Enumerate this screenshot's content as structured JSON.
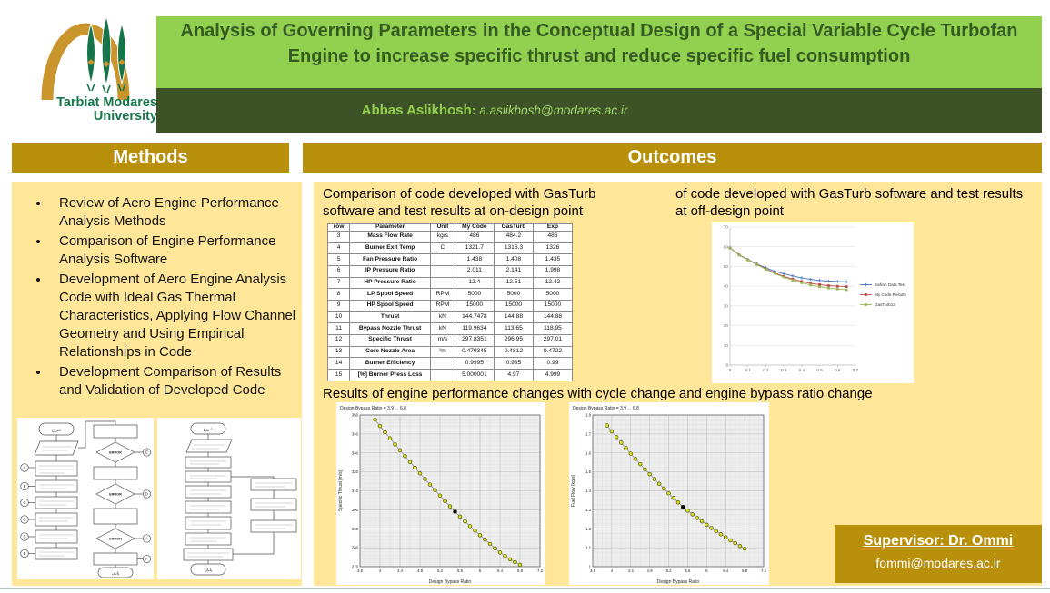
{
  "logo": {
    "line1": "Tarbiat Modares",
    "line2": "University"
  },
  "header": {
    "title": "Analysis of Governing Parameters in the Conceptual Design of a Special Variable Cycle Turbofan Engine to increase specific thrust and reduce specific fuel consumption",
    "author_name": "Abbas Aslikhosh",
    "author_separator": ": ",
    "author_email": "a.aslikhosh@modares.ac.ir"
  },
  "colors": {
    "light_green": "#92D050",
    "dark_green": "#3D5227",
    "gold": "#B8900B",
    "cream": "#FFE699",
    "series_blue": "#4472C4",
    "series_red": "#BE4B48",
    "series_green": "#98B954",
    "gasturb_marker": "#d9e021"
  },
  "methods": {
    "heading": "Methods",
    "bullets": [
      "Review of Aero Engine Performance Analysis Methods",
      "Comparison of Engine Performance Analysis Software",
      "Development of Aero Engine Analysis Code with Ideal Gas Thermal Characteristics, Applying Flow Channel Geometry and Using Empirical Relationships in Code",
      "Development Comparison of Results and Validation of Developed Code"
    ]
  },
  "flowcharts": {
    "left": {
      "start": "شروع",
      "end": "پایان",
      "error": "ERROR",
      "left_letters": [
        "A",
        "B",
        "C",
        "G",
        "D",
        "E"
      ],
      "right_letters": [
        "E",
        "D",
        "A",
        "F"
      ]
    },
    "right": {
      "start": "شروع",
      "end": "پایان"
    }
  },
  "outcomes": {
    "heading": "Outcomes",
    "caption_on_design": "Comparison of code developed with GasTurb software and test results at on-design point",
    "caption_off_design": "of code developed with GasTurb software and test results at off-design point",
    "caption_results": "Results of engine performance changes with cycle change and engine bypass ratio change",
    "table": {
      "headers": [
        "row",
        "Parameter",
        "Unit",
        "My Code",
        "GasTurb",
        "Exp"
      ],
      "rows": [
        [
          "3",
          "Mass Flow Rate",
          "kg/s",
          "486",
          "484.2",
          "486"
        ],
        [
          "4",
          "Burner Exit Temp",
          "C",
          "1321.7",
          "1316.3",
          "1326"
        ],
        [
          "5",
          "Fan Pressure Ratio",
          "",
          "1.438",
          "1.408",
          "1.435"
        ],
        [
          "6",
          "IP Pressure Ratio",
          "",
          "2.011",
          "2.141",
          "1.998"
        ],
        [
          "7",
          "HP Pressure Ratio",
          "",
          "12.4",
          "12.51",
          "12.42"
        ],
        [
          "8",
          "LP Spool Speed",
          "RPM",
          "5000",
          "5000",
          "5000"
        ],
        [
          "9",
          "HP Spool Speed",
          "RPM",
          "15000",
          "15000",
          "15000"
        ],
        [
          "10",
          "Thrust",
          "kN",
          "144.7478",
          "144.88",
          "144.88"
        ],
        [
          "11",
          "Bypass Nozzle Thrust",
          "kN",
          "119.9634",
          "113.65",
          "118.95"
        ],
        [
          "12",
          "Specific Thrust",
          "m/s",
          "297.8351",
          "296.95",
          "297.01"
        ],
        [
          "13",
          "Core Nozzle Area",
          "²m",
          "0.479345",
          "0.4812",
          "0.4722"
        ],
        [
          "14",
          "Burner Efficiency",
          "",
          "0.9995",
          "0.985",
          "0.99"
        ],
        [
          "15",
          "[%] Burner Press Loss",
          "",
          "5.000001",
          "4.97",
          "4.999"
        ]
      ]
    },
    "supervisor": {
      "title": "Supervisor: Dr. Ommi",
      "email": "fommi@modares.ac.ir"
    }
  },
  "chart_data": [
    {
      "type": "line",
      "style": "excel",
      "title": "",
      "xlabel": "",
      "ylabel": "",
      "xlim": [
        0,
        0.7
      ],
      "ylim": [
        0,
        70
      ],
      "xticks": [
        0,
        0.1,
        0.2,
        0.3,
        0.4,
        0.5,
        0.6,
        0.7
      ],
      "yticks": [
        0,
        10,
        20,
        30,
        40,
        50,
        60,
        70
      ],
      "grid": "horizontal",
      "legend_position": "right",
      "x": [
        0,
        0.05,
        0.1,
        0.15,
        0.2,
        0.25,
        0.3,
        0.35,
        0.4,
        0.45,
        0.5,
        0.55,
        0.6,
        0.65
      ],
      "series": [
        {
          "name": "Safran Data Test",
          "color": "#4472C4",
          "marker": "plus",
          "values": [
            59.5,
            56,
            53.5,
            51.2,
            49.3,
            47.6,
            46.3,
            45.2,
            44.2,
            43.5,
            42.9,
            42.6,
            42.4,
            42.2
          ]
        },
        {
          "name": "My Code Results",
          "color": "#BE4B48",
          "marker": "square",
          "values": [
            59.4,
            55.9,
            53.4,
            51,
            48.8,
            46.7,
            45,
            43.6,
            42.4,
            41.4,
            40.8,
            40.3,
            40,
            39.8
          ]
        },
        {
          "name": "GasTurb13",
          "color": "#98B954",
          "marker": "square",
          "values": [
            59.3,
            55.8,
            53.3,
            50.9,
            48.6,
            46.4,
            44.6,
            43,
            41.7,
            40.6,
            39.7,
            39.1,
            38.6,
            38.2
          ]
        }
      ]
    },
    {
      "type": "scatter",
      "style": "gasturb",
      "title": "Design Bypass Ratio = 3.9 ... 6.8",
      "xlabel": "Design Bypass Ratio",
      "ylabel": "Specific Thrust [m/s]",
      "xlim": [
        3.6,
        7.2
      ],
      "ylim": [
        270,
        350
      ],
      "xticks": [
        3.6,
        4,
        4.4,
        4.8,
        5.2,
        5.6,
        6,
        6.4,
        6.8,
        7.2
      ],
      "yticks": [
        270,
        280,
        290,
        300,
        310,
        320,
        330,
        340,
        350
      ],
      "minor": [
        0.1,
        2
      ],
      "grid": "both",
      "x": [
        3.9,
        4,
        4.1,
        4.2,
        4.3,
        4.4,
        4.5,
        4.6,
        4.7,
        4.8,
        4.9,
        5,
        5.1,
        5.2,
        5.3,
        5.4,
        5.5,
        5.6,
        5.7,
        5.8,
        5.9,
        6,
        6.1,
        6.2,
        6.3,
        6.4,
        6.5,
        6.6,
        6.7,
        6.8
      ],
      "values": [
        347.5,
        344.2,
        340.9,
        337.7,
        334.5,
        331.4,
        328.3,
        325.2,
        322.2,
        319.2,
        316.2,
        313.3,
        310.4,
        307.5,
        304.6,
        301.8,
        299,
        296.4,
        293.9,
        291.4,
        289,
        286.6,
        284.3,
        282,
        279.7,
        277.5,
        275.6,
        273.9,
        272.4,
        271
      ],
      "design_point": {
        "x": 5.5,
        "y": 299
      }
    },
    {
      "type": "scatter",
      "style": "gasturb",
      "title": "Design Bypass Ratio = 3.9 ... 6.8",
      "xlabel": "Design Bypass Ratio",
      "ylabel": "Fuel Flow [kg/s]",
      "xlim": [
        3.6,
        7.2
      ],
      "ylim": [
        1,
        1.8
      ],
      "xticks": [
        3.6,
        4,
        4.4,
        4.8,
        5.2,
        5.6,
        6,
        6.4,
        6.8,
        7.2
      ],
      "yticks": [
        1,
        1.1,
        1.2,
        1.3,
        1.4,
        1.5,
        1.6,
        1.7,
        1.8
      ],
      "minor": [
        0.1,
        0.025
      ],
      "grid": "both",
      "x": [
        3.9,
        4,
        4.1,
        4.2,
        4.3,
        4.4,
        4.5,
        4.6,
        4.7,
        4.8,
        4.9,
        5,
        5.1,
        5.2,
        5.3,
        5.4,
        5.5,
        5.6,
        5.7,
        5.8,
        5.9,
        6,
        6.1,
        6.2,
        6.3,
        6.4,
        6.5,
        6.6,
        6.7,
        6.8
      ],
      "values": [
        1.745,
        1.714,
        1.684,
        1.654,
        1.625,
        1.596,
        1.568,
        1.541,
        1.514,
        1.488,
        1.462,
        1.437,
        1.412,
        1.387,
        1.363,
        1.339,
        1.315,
        1.295,
        1.276,
        1.257,
        1.239,
        1.221,
        1.204,
        1.187,
        1.171,
        1.155,
        1.139,
        1.124,
        1.109,
        1.095
      ],
      "design_point": {
        "x": 5.5,
        "y": 1.315
      }
    }
  ]
}
